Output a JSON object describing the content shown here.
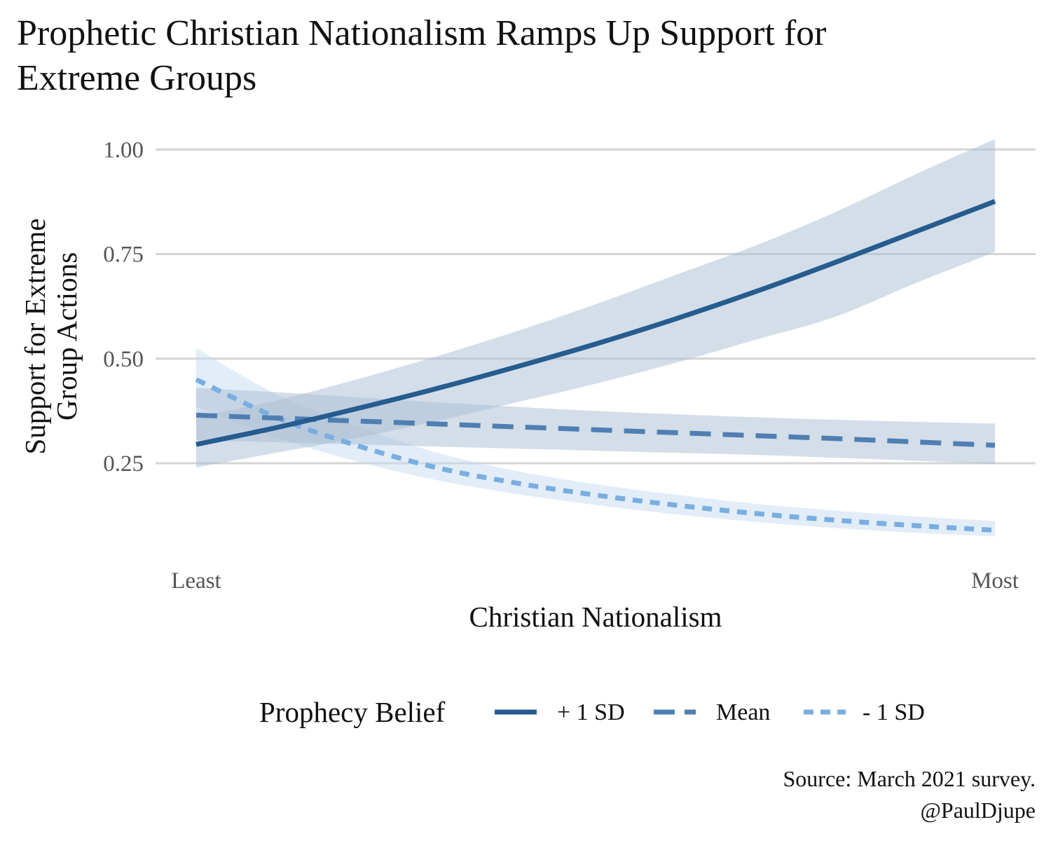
{
  "chart_data": {
    "type": "line",
    "title_lines": [
      "Prophetic Christian Nationalism Ramps Up Support for",
      "Extreme Groups"
    ],
    "xlabel": "Christian Nationalism",
    "ylabel_lines": [
      "Support for Extreme",
      "Group Actions"
    ],
    "x_tick_labels": [
      "Least",
      "Most"
    ],
    "xlim": [
      0,
      1
    ],
    "ylim": [
      0.025,
      1.1
    ],
    "y_ticks": [
      0.25,
      0.5,
      0.75,
      1.0
    ],
    "y_tick_labels": [
      "0.25",
      "0.50",
      "0.75",
      "1.00"
    ],
    "grid": true,
    "legend": {
      "title": "Prophecy Belief",
      "placement": "bottom"
    },
    "x": [
      0,
      0.1,
      0.2,
      0.3,
      0.4,
      0.5,
      0.6,
      0.7,
      0.8,
      0.9,
      1.0
    ],
    "series": [
      {
        "name": "+ 1 SD",
        "color": "#265c8f",
        "band_color": "#aabdd3",
        "dash": "solid",
        "values": [
          0.295,
          0.335,
          0.38,
          0.428,
          0.48,
          0.535,
          0.595,
          0.66,
          0.73,
          0.803,
          0.876
        ],
        "lower": [
          0.24,
          0.275,
          0.31,
          0.35,
          0.395,
          0.44,
          0.49,
          0.545,
          0.6,
          0.68,
          0.755
        ],
        "upper": [
          0.36,
          0.4,
          0.45,
          0.505,
          0.565,
          0.63,
          0.7,
          0.77,
          0.85,
          0.94,
          1.025
        ]
      },
      {
        "name": "Mean",
        "color": "#4f7fb2",
        "band_color": "#aabdd3",
        "dash": "long",
        "values": [
          0.365,
          0.358,
          0.351,
          0.344,
          0.337,
          0.33,
          0.323,
          0.316,
          0.309,
          0.301,
          0.293
        ],
        "lower": [
          0.305,
          0.3,
          0.295,
          0.29,
          0.285,
          0.28,
          0.275,
          0.27,
          0.263,
          0.256,
          0.248
        ],
        "upper": [
          0.43,
          0.42,
          0.408,
          0.396,
          0.385,
          0.375,
          0.367,
          0.36,
          0.354,
          0.349,
          0.345
        ]
      },
      {
        "name": "- 1 SD",
        "color": "#7aaee0",
        "band_color": "#c6dcf0",
        "dash": "short",
        "values": [
          0.45,
          0.36,
          0.293,
          0.24,
          0.203,
          0.174,
          0.15,
          0.13,
          0.114,
          0.101,
          0.09
        ],
        "lower": [
          0.385,
          0.312,
          0.255,
          0.21,
          0.177,
          0.15,
          0.128,
          0.11,
          0.095,
          0.084,
          0.075
        ],
        "upper": [
          0.525,
          0.415,
          0.34,
          0.276,
          0.232,
          0.2,
          0.175,
          0.153,
          0.137,
          0.123,
          0.112
        ]
      }
    ],
    "caption_lines": [
      "Source: March 2021 survey.",
      "@PaulDjupe"
    ]
  }
}
